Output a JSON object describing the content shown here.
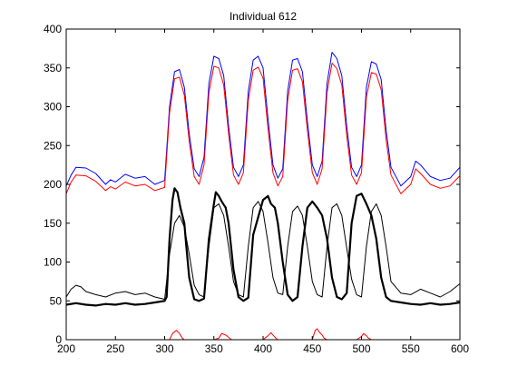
{
  "chart_data": {
    "type": "line",
    "title": "Individual 612",
    "xlabel": "",
    "ylabel": "",
    "xlim": [
      200,
      600
    ],
    "ylim": [
      0,
      400
    ],
    "xticks": [
      "200",
      "250",
      "300",
      "350",
      "400",
      "450",
      "500",
      "550",
      "600"
    ],
    "yticks": [
      "0",
      "50",
      "100",
      "150",
      "200",
      "250",
      "300",
      "350",
      "400"
    ],
    "grid": false,
    "legend": "none",
    "series": [
      {
        "color": "#0000ff",
        "line_width": 1,
        "x": [
          200,
          205,
          210,
          220,
          230,
          240,
          245,
          250,
          260,
          270,
          280,
          290,
          300,
          305,
          310,
          315,
          320,
          325,
          330,
          335,
          340,
          345,
          350,
          355,
          360,
          365,
          370,
          375,
          380,
          385,
          390,
          395,
          400,
          405,
          410,
          415,
          420,
          425,
          430,
          435,
          440,
          445,
          450,
          455,
          460,
          465,
          470,
          475,
          480,
          485,
          490,
          495,
          500,
          505,
          510,
          515,
          520,
          525,
          530,
          540,
          550,
          555,
          560,
          570,
          580,
          590,
          600
        ],
        "y": [
          198,
          212,
          222,
          221,
          214,
          200,
          206,
          203,
          213,
          208,
          210,
          200,
          205,
          300,
          345,
          348,
          325,
          265,
          220,
          210,
          235,
          330,
          365,
          362,
          340,
          275,
          222,
          210,
          225,
          320,
          360,
          365,
          350,
          285,
          225,
          208,
          220,
          320,
          360,
          362,
          345,
          282,
          225,
          210,
          230,
          330,
          370,
          362,
          340,
          275,
          222,
          210,
          225,
          325,
          358,
          355,
          335,
          270,
          222,
          198,
          210,
          230,
          225,
          210,
          205,
          208,
          222
        ]
      },
      {
        "color": "#ff0000",
        "line_width": 1,
        "x": [
          200,
          205,
          210,
          220,
          230,
          240,
          245,
          250,
          260,
          270,
          280,
          290,
          300,
          305,
          310,
          315,
          320,
          325,
          330,
          335,
          340,
          345,
          350,
          355,
          360,
          365,
          370,
          375,
          380,
          385,
          390,
          395,
          400,
          405,
          410,
          415,
          420,
          425,
          430,
          435,
          440,
          445,
          450,
          455,
          460,
          465,
          470,
          475,
          480,
          485,
          490,
          495,
          500,
          505,
          510,
          515,
          520,
          525,
          530,
          540,
          550,
          555,
          560,
          570,
          580,
          590,
          600
        ],
        "y": [
          188,
          203,
          212,
          211,
          204,
          192,
          197,
          194,
          203,
          198,
          200,
          192,
          196,
          292,
          336,
          338,
          315,
          255,
          210,
          200,
          225,
          318,
          352,
          350,
          328,
          265,
          212,
          200,
          215,
          308,
          347,
          351,
          337,
          272,
          215,
          198,
          210,
          308,
          347,
          349,
          332,
          270,
          215,
          200,
          220,
          318,
          356,
          349,
          328,
          263,
          212,
          200,
          215,
          312,
          344,
          342,
          322,
          258,
          212,
          188,
          200,
          220,
          214,
          200,
          195,
          198,
          211
        ]
      },
      {
        "color": "#000000",
        "line_width": 2.2,
        "x": [
          200,
          210,
          220,
          230,
          240,
          250,
          260,
          270,
          280,
          290,
          300,
          302,
          305,
          308,
          310,
          313,
          316,
          318,
          320,
          322,
          325,
          330,
          335,
          340,
          345,
          350,
          352,
          355,
          358,
          362,
          365,
          370,
          375,
          380,
          385,
          390,
          400,
          405,
          408,
          412,
          415,
          420,
          425,
          430,
          435,
          440,
          445,
          450,
          455,
          460,
          465,
          470,
          475,
          480,
          485,
          490,
          495,
          500,
          505,
          510,
          515,
          520,
          525,
          530,
          540,
          550,
          560,
          570,
          580,
          590,
          600
        ],
        "y": [
          45,
          47,
          45,
          44,
          46,
          45,
          47,
          45,
          46,
          48,
          50,
          55,
          130,
          180,
          195,
          190,
          170,
          160,
          150,
          120,
          80,
          52,
          50,
          53,
          130,
          175,
          190,
          185,
          178,
          170,
          150,
          90,
          55,
          50,
          54,
          135,
          180,
          185,
          175,
          170,
          150,
          100,
          58,
          50,
          55,
          120,
          170,
          178,
          170,
          160,
          130,
          80,
          55,
          52,
          60,
          150,
          185,
          188,
          175,
          160,
          130,
          80,
          55,
          50,
          48,
          46,
          45,
          47,
          45,
          46,
          48
        ]
      },
      {
        "color": "#000000",
        "line_width": 1,
        "x": [
          200,
          205,
          210,
          215,
          220,
          230,
          240,
          250,
          260,
          270,
          280,
          290,
          300,
          305,
          310,
          315,
          320,
          325,
          330,
          335,
          340,
          345,
          350,
          355,
          360,
          365,
          370,
          375,
          380,
          385,
          390,
          395,
          400,
          405,
          410,
          415,
          420,
          425,
          430,
          435,
          440,
          445,
          450,
          455,
          460,
          465,
          470,
          475,
          480,
          485,
          490,
          495,
          500,
          505,
          510,
          515,
          520,
          525,
          530,
          540,
          550,
          560,
          570,
          580,
          590,
          600
        ],
        "y": [
          55,
          65,
          70,
          68,
          62,
          58,
          55,
          60,
          62,
          58,
          60,
          55,
          52,
          110,
          150,
          160,
          145,
          110,
          70,
          58,
          55,
          120,
          170,
          175,
          160,
          120,
          75,
          58,
          55,
          120,
          170,
          178,
          165,
          125,
          80,
          60,
          58,
          120,
          165,
          172,
          160,
          120,
          75,
          58,
          55,
          120,
          170,
          175,
          160,
          118,
          78,
          58,
          55,
          120,
          165,
          175,
          160,
          120,
          75,
          60,
          58,
          65,
          60,
          55,
          62,
          72
        ]
      },
      {
        "color": "#ff0000",
        "line_width": 1,
        "x": [
          200,
          300,
          305,
          308,
          312,
          315,
          318,
          320,
          350,
          355,
          358,
          362,
          365,
          368,
          370,
          400,
          405,
          408,
          410,
          413,
          415,
          450,
          453,
          455,
          457,
          460,
          462,
          465,
          495,
          500,
          502,
          505,
          507,
          510,
          600
        ],
        "y": [
          0,
          0,
          0,
          8,
          12,
          8,
          2,
          0,
          0,
          2,
          8,
          6,
          3,
          0,
          0,
          0,
          5,
          9,
          6,
          2,
          0,
          0,
          12,
          14,
          10,
          6,
          2,
          0,
          0,
          4,
          8,
          5,
          2,
          0,
          0
        ]
      }
    ]
  }
}
